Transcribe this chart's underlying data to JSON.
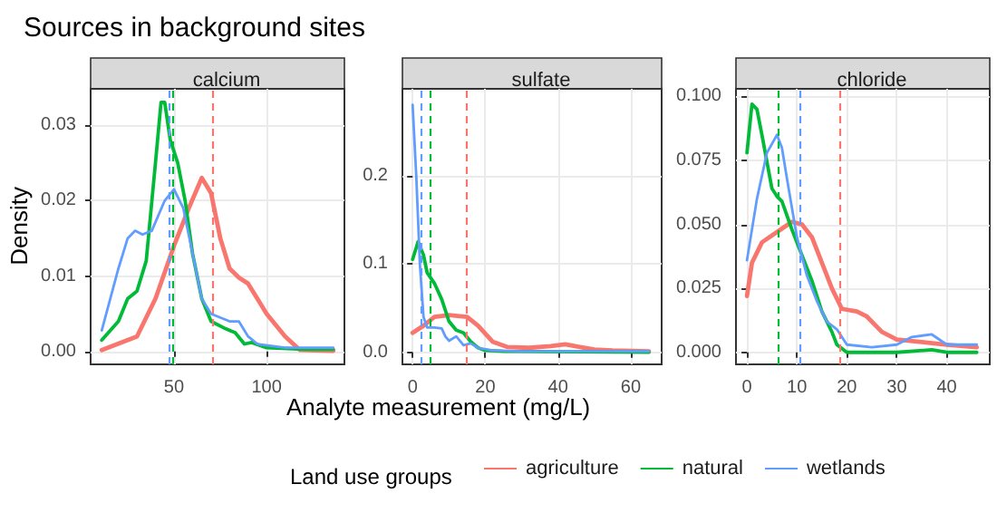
{
  "chart_data": [
    {
      "type": "line",
      "title": "Sources in background sites",
      "subtitle": "calcium",
      "ylabel": "Density",
      "xlim": [
        5,
        142
      ],
      "xticks": [
        50,
        100
      ],
      "ylim": [
        -0.0017,
        0.0348
      ],
      "yticks": [
        {
          "value": 0,
          "label": "0.00"
        },
        {
          "value": 0.01,
          "label": "0.01"
        },
        {
          "value": 0.02,
          "label": "0.02"
        },
        {
          "value": 0.03,
          "label": "0.03"
        }
      ],
      "grid": true,
      "legend": false,
      "marker": "none",
      "line_style": "solid",
      "series": [
        {
          "color": "#f8766d",
          "x": [
            11,
            30,
            40,
            50,
            58,
            65,
            70,
            75,
            80,
            85,
            90,
            95,
            100,
            110,
            118,
            136
          ],
          "values": [
            0.0002,
            0.002,
            0.007,
            0.014,
            0.019,
            0.023,
            0.021,
            0.015,
            0.011,
            0.0098,
            0.009,
            0.007,
            0.005,
            0.002,
            0.0002,
            0.0001
          ]
        },
        {
          "color": "#00ba38",
          "x": [
            11,
            20,
            25,
            30,
            35,
            40,
            43,
            45,
            48,
            52,
            56,
            60,
            65,
            70,
            78,
            83,
            88,
            92,
            100,
            120,
            136
          ],
          "values": [
            0.0015,
            0.004,
            0.007,
            0.008,
            0.012,
            0.025,
            0.033,
            0.033,
            0.028,
            0.025,
            0.02,
            0.013,
            0.007,
            0.004,
            0.003,
            0.0025,
            0.001,
            0.0012,
            0.0005,
            0.0003,
            0.0003
          ]
        },
        {
          "color": "#619cff",
          "x": [
            11,
            20,
            25,
            29,
            33,
            38,
            45,
            50,
            55,
            60,
            65,
            70,
            80,
            85,
            90,
            95,
            110,
            136
          ],
          "values": [
            0.0028,
            0.011,
            0.015,
            0.016,
            0.0155,
            0.016,
            0.02,
            0.0215,
            0.019,
            0.013,
            0.007,
            0.005,
            0.004,
            0.004,
            0.002,
            0.001,
            0.0005,
            0.0005
          ]
        }
      ],
      "ref_lines": [
        {
          "axis": "x",
          "value": 71,
          "color": "#f8766d",
          "line_style": "dashed"
        },
        {
          "axis": "x",
          "value": 49.5,
          "color": "#00ba38",
          "line_style": "dashed"
        },
        {
          "axis": "x",
          "value": 47,
          "color": "#619cff",
          "line_style": "dashed"
        }
      ]
    },
    {
      "type": "line",
      "subtitle": "sulfate",
      "xlabel": "Analyte measurement (mg/L)",
      "legend_title": "Land use groups",
      "legend": "bottom",
      "xlim": [
        -2.8,
        68.5
      ],
      "xticks": [
        0,
        20,
        40,
        60
      ],
      "ylim": [
        -0.0137,
        0.298
      ],
      "yticks": [
        {
          "value": 0,
          "label": "0.0"
        },
        {
          "value": 0.1,
          "label": "0.1"
        },
        {
          "value": 0.2,
          "label": "0.2"
        }
      ],
      "grid": true,
      "marker": "none",
      "line_style": "solid",
      "series": [
        {
          "name": "agriculture",
          "color": "#f8766d",
          "x": [
            0,
            3,
            6,
            10,
            15,
            18,
            22,
            26,
            32,
            38,
            42,
            46,
            50,
            55,
            65
          ],
          "values": [
            0.022,
            0.03,
            0.04,
            0.042,
            0.04,
            0.03,
            0.012,
            0.006,
            0.005,
            0.007,
            0.009,
            0.006,
            0.003,
            0.002,
            0.001
          ]
        },
        {
          "name": "natural",
          "color": "#00ba38",
          "x": [
            0,
            1.5,
            3,
            4,
            6,
            8,
            10,
            12,
            14,
            16,
            18,
            20,
            25,
            65
          ],
          "values": [
            0.105,
            0.125,
            0.11,
            0.09,
            0.078,
            0.06,
            0.035,
            0.025,
            0.022,
            0.012,
            0.005,
            0.002,
            0.001,
            0
          ]
        },
        {
          "name": "wetlands",
          "color": "#619cff",
          "x": [
            0,
            1,
            2,
            3,
            4,
            6,
            8,
            9,
            10,
            12,
            14,
            16,
            18,
            22,
            30,
            65
          ],
          "values": [
            0.28,
            0.2,
            0.1,
            0.04,
            0.028,
            0.028,
            0.027,
            0.018,
            0.013,
            0.018,
            0.008,
            0.01,
            0.005,
            0.002,
            0.001,
            0.001
          ]
        }
      ],
      "ref_lines": [
        {
          "axis": "x",
          "value": 15,
          "color": "#f8766d",
          "line_style": "dashed"
        },
        {
          "axis": "x",
          "value": 5,
          "color": "#00ba38",
          "line_style": "dashed"
        },
        {
          "axis": "x",
          "value": 2.5,
          "color": "#619cff",
          "line_style": "dashed"
        }
      ]
    },
    {
      "type": "line",
      "subtitle": "chloride",
      "xlim": [
        -2.2,
        48.6
      ],
      "xticks": [
        0,
        10,
        20,
        30,
        40
      ],
      "ylim": [
        -0.0047,
        0.103
      ],
      "yticks": [
        {
          "value": 0,
          "label": "0.000"
        },
        {
          "value": 0.025,
          "label": "0.025"
        },
        {
          "value": 0.05,
          "label": "0.050"
        },
        {
          "value": 0.075,
          "label": "0.075"
        },
        {
          "value": 0.1,
          "label": "0.100"
        }
      ],
      "grid": true,
      "legend": false,
      "marker": "none",
      "line_style": "solid",
      "series": [
        {
          "color": "#f8766d",
          "x": [
            0,
            1,
            3,
            6,
            9,
            11,
            13,
            15,
            17,
            19,
            22,
            24,
            27,
            30,
            35,
            40,
            46
          ],
          "values": [
            0.022,
            0.035,
            0.043,
            0.047,
            0.051,
            0.05,
            0.045,
            0.035,
            0.025,
            0.017,
            0.016,
            0.014,
            0.008,
            0.005,
            0.004,
            0.003,
            0.002
          ]
        },
        {
          "color": "#00ba38",
          "x": [
            0,
            1,
            2,
            3,
            5,
            6,
            7,
            9,
            11,
            13,
            15,
            17,
            18,
            20,
            30,
            37,
            40,
            46
          ],
          "values": [
            0.078,
            0.097,
            0.095,
            0.085,
            0.064,
            0.061,
            0.059,
            0.048,
            0.038,
            0.028,
            0.016,
            0.008,
            0.003,
            0,
            0,
            0.001,
            0,
            0
          ]
        },
        {
          "color": "#619cff",
          "x": [
            0,
            2,
            4,
            6,
            7,
            8,
            10,
            12,
            14,
            16,
            18,
            20,
            25,
            30,
            33,
            37,
            40,
            46
          ],
          "values": [
            0.036,
            0.06,
            0.078,
            0.085,
            0.08,
            0.068,
            0.045,
            0.03,
            0.02,
            0.012,
            0.009,
            0.003,
            0.002,
            0.003,
            0.006,
            0.007,
            0.003,
            0.003
          ]
        }
      ],
      "ref_lines": [
        {
          "axis": "x",
          "value": 18.5,
          "color": "#f8766d",
          "line_style": "dashed"
        },
        {
          "axis": "x",
          "value": 6.3,
          "color": "#00ba38",
          "line_style": "dashed"
        },
        {
          "axis": "x",
          "value": 10.5,
          "color": "#619cff",
          "line_style": "dashed"
        }
      ]
    }
  ]
}
